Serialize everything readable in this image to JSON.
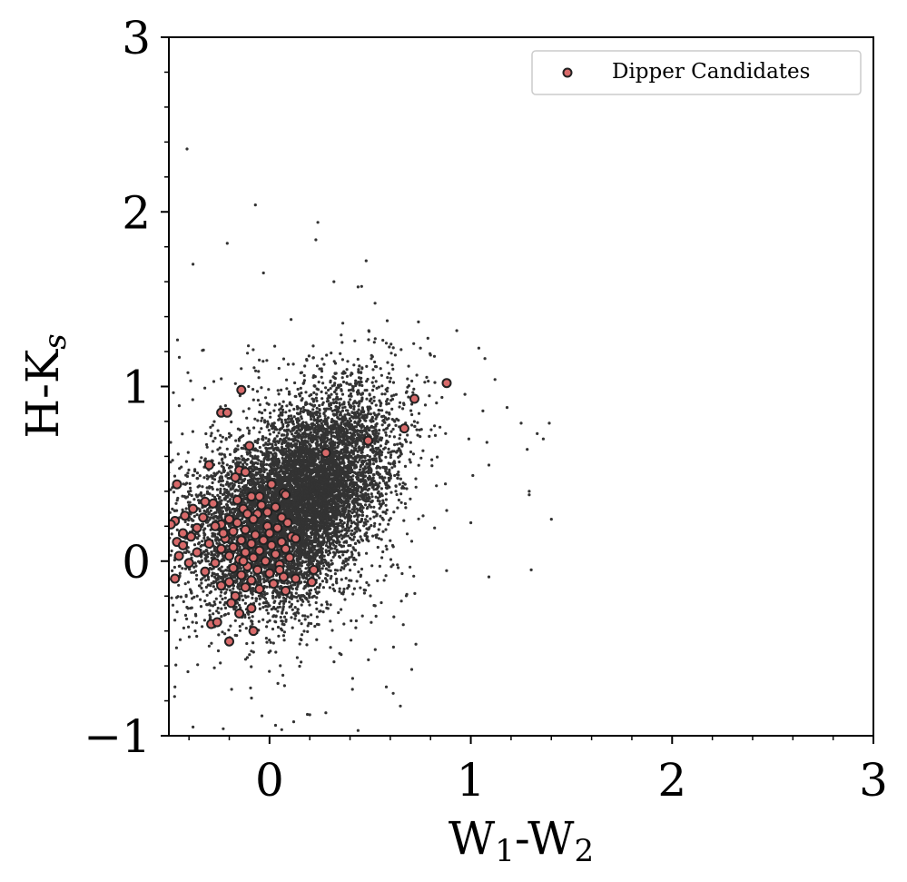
{
  "chart_data": {
    "type": "scatter",
    "xlabel": "W1-W2",
    "xlabel_main": "W",
    "xlabel_sub1": "1",
    "xlabel_mid": "-W",
    "xlabel_sub2": "2",
    "ylabel": "H-Ks",
    "ylabel_main": "H-K",
    "ylabel_sub": "s",
    "xlim": [
      -0.5,
      3
    ],
    "ylim": [
      -1,
      3
    ],
    "x_major_ticks": [
      0,
      1,
      2,
      3
    ],
    "x_tick_labels": [
      "0",
      "1",
      "2",
      "3"
    ],
    "y_major_ticks": [
      -1,
      0,
      1,
      2,
      3
    ],
    "y_tick_labels": [
      "−1",
      "0",
      "1",
      "2",
      "3"
    ],
    "grid": false,
    "legend_position": "top-right",
    "series": [
      {
        "name": "",
        "role": "background field stars",
        "color": "#333333",
        "marker": "small dot",
        "distribution": {
          "core_center": [
            0.22,
            0.45
          ],
          "core_spread": [
            0.2,
            0.25
          ],
          "secondary_center": [
            -0.05,
            0.15
          ],
          "secondary_spread": [
            0.2,
            0.25
          ],
          "approx_count": 9000
        },
        "outliers": [
          [
            -0.41,
            2.36
          ],
          [
            -0.07,
            2.04
          ],
          [
            -0.21,
            1.82
          ],
          [
            -0.38,
            1.7
          ],
          [
            0.24,
            1.94
          ],
          [
            0.23,
            1.84
          ],
          [
            0.48,
            1.72
          ],
          [
            -0.03,
            1.65
          ],
          [
            0.32,
            1.6
          ],
          [
            0.44,
            1.57
          ],
          [
            0.74,
            1.37
          ],
          [
            0.93,
            1.32
          ],
          [
            0.75,
            1.22
          ],
          [
            0.8,
            1.18
          ],
          [
            1.04,
            1.22
          ],
          [
            1.12,
            1.04
          ],
          [
            1.07,
            1.16
          ],
          [
            1.18,
            0.88
          ],
          [
            1.25,
            0.79
          ],
          [
            1.33,
            0.73
          ],
          [
            1.39,
            0.79
          ],
          [
            1.36,
            0.7
          ],
          [
            1.28,
            0.64
          ],
          [
            1.06,
            0.86
          ],
          [
            1.08,
            0.68
          ],
          [
            0.99,
            0.7
          ],
          [
            1.09,
            0.55
          ],
          [
            1.29,
            0.4
          ],
          [
            1.29,
            0.38
          ],
          [
            1.4,
            0.24
          ],
          [
            1.01,
            0.49
          ],
          [
            0.88,
            0.29
          ],
          [
            0.82,
            0.19
          ],
          [
            1.0,
            0.22
          ],
          [
            1.09,
            -0.09
          ],
          [
            1.3,
            -0.05
          ],
          [
            0.65,
            -0.83
          ],
          [
            0.44,
            -0.97
          ],
          [
            0.58,
            -0.72
          ],
          [
            -0.38,
            -0.95
          ],
          [
            0.12,
            -0.92
          ],
          [
            -0.23,
            -0.96
          ],
          [
            0.03,
            -0.94
          ],
          [
            0.2,
            -0.88
          ],
          [
            -0.47,
            -0.72
          ]
        ]
      },
      {
        "name": "Dipper Candidates",
        "color": "#d86a6a",
        "edge_color": "#222222",
        "points": [
          [
            0.88,
            1.02
          ],
          [
            0.72,
            0.93
          ],
          [
            0.67,
            0.76
          ],
          [
            0.49,
            0.69
          ],
          [
            0.28,
            0.62
          ],
          [
            -0.14,
            0.98
          ],
          [
            -0.24,
            0.85
          ],
          [
            -0.21,
            0.85
          ],
          [
            -0.1,
            0.66
          ],
          [
            -0.3,
            0.55
          ],
          [
            -0.15,
            0.52
          ],
          [
            -0.12,
            0.51
          ],
          [
            -0.17,
            0.48
          ],
          [
            -0.46,
            0.44
          ],
          [
            0.01,
            0.44
          ],
          [
            0.07,
            0.39
          ],
          [
            0.08,
            0.38
          ],
          [
            -0.09,
            0.37
          ],
          [
            -0.05,
            0.37
          ],
          [
            -0.16,
            0.35
          ],
          [
            -0.32,
            0.34
          ],
          [
            -0.28,
            0.33
          ],
          [
            -0.04,
            0.32
          ],
          [
            0.03,
            0.31
          ],
          [
            -0.13,
            0.3
          ],
          [
            -0.38,
            0.3
          ],
          [
            -0.11,
            0.27
          ],
          [
            -0.06,
            0.27
          ],
          [
            -0.42,
            0.26
          ],
          [
            -0.33,
            0.25
          ],
          [
            0.06,
            0.25
          ],
          [
            -0.08,
            0.24
          ],
          [
            -0.2,
            0.24
          ],
          [
            -0.47,
            0.23
          ],
          [
            -0.16,
            0.22
          ],
          [
            0.09,
            0.22
          ],
          [
            -0.24,
            0.21
          ],
          [
            -0.49,
            0.21
          ],
          [
            -0.01,
            0.2
          ],
          [
            -0.27,
            0.2
          ],
          [
            -0.36,
            0.19
          ],
          [
            0.04,
            0.19
          ],
          [
            -0.12,
            0.18
          ],
          [
            -0.18,
            0.17
          ],
          [
            -0.43,
            0.16
          ],
          [
            0.0,
            0.16
          ],
          [
            -0.07,
            0.15
          ],
          [
            0.11,
            0.14
          ],
          [
            -0.39,
            0.14
          ],
          [
            -0.22,
            0.13
          ],
          [
            0.13,
            0.13
          ],
          [
            -0.03,
            0.12
          ],
          [
            -0.14,
            0.12
          ],
          [
            -0.46,
            0.11
          ],
          [
            0.06,
            0.11
          ],
          [
            -0.3,
            0.1
          ],
          [
            -0.09,
            0.1
          ],
          [
            -0.43,
            0.09
          ],
          [
            0.01,
            0.09
          ],
          [
            -0.18,
            0.08
          ],
          [
            -0.24,
            0.07
          ],
          [
            0.08,
            0.07
          ],
          [
            -0.05,
            0.06
          ],
          [
            -0.12,
            0.05
          ],
          [
            -0.36,
            0.05
          ],
          [
            0.03,
            0.04
          ],
          [
            -0.2,
            0.03
          ],
          [
            -0.45,
            0.03
          ],
          [
            -0.08,
            0.02
          ],
          [
            0.1,
            0.02
          ],
          [
            -0.15,
            0.01
          ],
          [
            -0.02,
            0.0
          ],
          [
            -0.4,
            -0.01
          ],
          [
            -0.27,
            -0.01
          ],
          [
            0.05,
            -0.02
          ],
          [
            -0.11,
            -0.03
          ],
          [
            -0.18,
            -0.04
          ],
          [
            -0.06,
            -0.05
          ],
          [
            0.22,
            -0.05
          ],
          [
            -0.32,
            -0.06
          ],
          [
            0.0,
            -0.07
          ],
          [
            -0.14,
            -0.08
          ],
          [
            0.07,
            -0.09
          ],
          [
            -0.47,
            -0.1
          ],
          [
            0.13,
            -0.1
          ],
          [
            -0.09,
            -0.11
          ],
          [
            -0.2,
            -0.12
          ],
          [
            0.21,
            -0.12
          ],
          [
            0.02,
            -0.13
          ],
          [
            -0.24,
            -0.14
          ],
          [
            -0.12,
            -0.15
          ],
          [
            -0.05,
            -0.16
          ],
          [
            0.08,
            -0.17
          ],
          [
            -0.17,
            -0.2
          ],
          [
            -0.09,
            -0.27
          ],
          [
            -0.19,
            -0.24
          ],
          [
            -0.15,
            -0.3
          ],
          [
            -0.29,
            -0.36
          ],
          [
            -0.2,
            -0.46
          ],
          [
            -0.08,
            -0.4
          ],
          [
            -0.26,
            -0.35
          ],
          [
            0.05,
            -0.05
          ],
          [
            -0.01,
            0.28
          ],
          [
            -0.23,
            0.16
          ],
          [
            -0.13,
            0.0
          ]
        ]
      }
    ]
  },
  "colors": {
    "background_points": "#333333",
    "candidates_fill": "#d86a6a",
    "candidates_edge": "#222222",
    "axis": "#000000"
  }
}
